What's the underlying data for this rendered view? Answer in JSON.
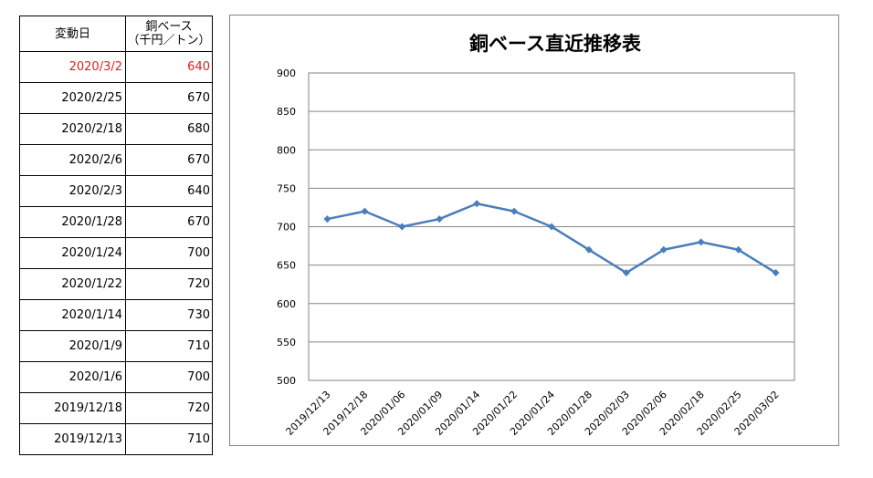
{
  "table": {
    "header": {
      "date": "変動日",
      "price_line1": "銅ベース",
      "price_line2": "（千円／トン）"
    },
    "rows": [
      {
        "date": "2020/3/2",
        "price": "640",
        "highlight": true
      },
      {
        "date": "2020/2/25",
        "price": "670"
      },
      {
        "date": "2020/2/18",
        "price": "680"
      },
      {
        "date": "2020/2/6",
        "price": "670"
      },
      {
        "date": "2020/2/3",
        "price": "640"
      },
      {
        "date": "2020/1/28",
        "price": "670"
      },
      {
        "date": "2020/1/24",
        "price": "700"
      },
      {
        "date": "2020/1/22",
        "price": "720"
      },
      {
        "date": "2020/1/14",
        "price": "730"
      },
      {
        "date": "2020/1/9",
        "price": "710"
      },
      {
        "date": "2020/1/6",
        "price": "700"
      },
      {
        "date": "2019/12/18",
        "price": "720"
      },
      {
        "date": "2019/12/13",
        "price": "710"
      }
    ],
    "highlight_color": "#e02020"
  },
  "chart_data": {
    "type": "line",
    "title": "銅ベース直近推移表",
    "categories": [
      "2019/12/13",
      "2019/12/18",
      "2020/01/06",
      "2020/01/09",
      "2020/01/14",
      "2020/01/22",
      "2020/01/24",
      "2020/01/28",
      "2020/02/03",
      "2020/02/06",
      "2020/02/18",
      "2020/02/25",
      "2020/03/02"
    ],
    "series": [
      {
        "values": [
          710,
          720,
          700,
          710,
          730,
          720,
          700,
          670,
          640,
          670,
          680,
          670,
          640
        ],
        "color": "#4a7ebb",
        "marker": "diamond"
      }
    ],
    "ylim": [
      500,
      900
    ],
    "yticks": [
      500,
      550,
      600,
      650,
      700,
      750,
      800,
      850,
      900
    ],
    "xlabel": "",
    "ylabel": "",
    "grid": true,
    "legend": "none"
  }
}
